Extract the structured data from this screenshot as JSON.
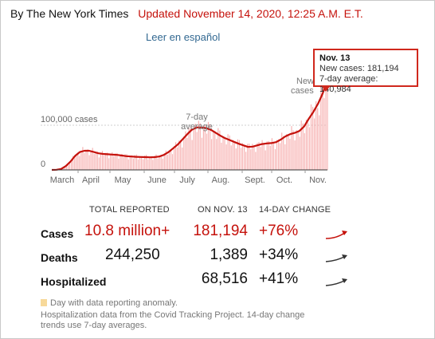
{
  "header": {
    "byline": "By The New York Times",
    "updated": "Updated November 14, 2020, 12:25 A.M. E.T.",
    "spanish_link": "Leer en español"
  },
  "chart_data": {
    "type": "bar",
    "x_labels": [
      "March",
      "April",
      "May",
      "June",
      "July",
      "Aug.",
      "Sept.",
      "Oct.",
      "Nov."
    ],
    "y_ticks": [
      {
        "label": "100,000 cases",
        "value": 100000
      },
      {
        "label": "0",
        "value": 0
      }
    ],
    "ylim": [
      0,
      180000
    ],
    "annotations": {
      "avg_line1": "7-day",
      "avg_line2": "average",
      "new_line1": "New",
      "new_line2": "cases"
    },
    "series": [
      {
        "name": "7-day average",
        "color": "#c5120c",
        "values": [
          50,
          300,
          1500,
          6000,
          13000,
          22000,
          28000,
          30000,
          30000,
          28000,
          26000,
          25000,
          24500,
          24000,
          23500,
          22500,
          21500,
          21000,
          20500,
          20200,
          20000,
          19800,
          20000,
          21000,
          23500,
          28000,
          34000,
          40000,
          48000,
          56000,
          63000,
          66500,
          66800,
          65500,
          63000,
          58500,
          54000,
          50000,
          47000,
          44000,
          41000,
          38500,
          36000,
          36500,
          38500,
          40500,
          41500,
          42000,
          43500,
          47500,
          52500,
          56000,
          58000,
          61000,
          68000,
          80000,
          91000,
          104000,
          120000,
          140984
        ]
      }
    ],
    "bar_color": "#f7b3b3",
    "tooltip": {
      "date": "Nov. 13",
      "new_cases": "New cases: 181,194",
      "avg": "7-day average: 140,984"
    }
  },
  "table": {
    "headers": {
      "total": "TOTAL REPORTED",
      "onday": "ON NOV. 13",
      "change": "14-DAY CHANGE"
    },
    "rows": [
      {
        "label": "Cases",
        "total": "10.8 million+",
        "onday": "181,194",
        "change": "+76%",
        "trend_color": "#c5120c"
      },
      {
        "label": "Deaths",
        "total": "244,250",
        "onday": "1,389",
        "change": "+34%",
        "trend_color": "#333333"
      },
      {
        "label": "Hospitalized",
        "total": "",
        "onday": "68,516",
        "change": "+41%",
        "trend_color": "#333333"
      }
    ]
  },
  "footer": {
    "legend": "Day with data reporting anomaly.",
    "note": "Hospitalization data from the Covid Tracking Project. 14-day change trends use 7-day averages."
  }
}
